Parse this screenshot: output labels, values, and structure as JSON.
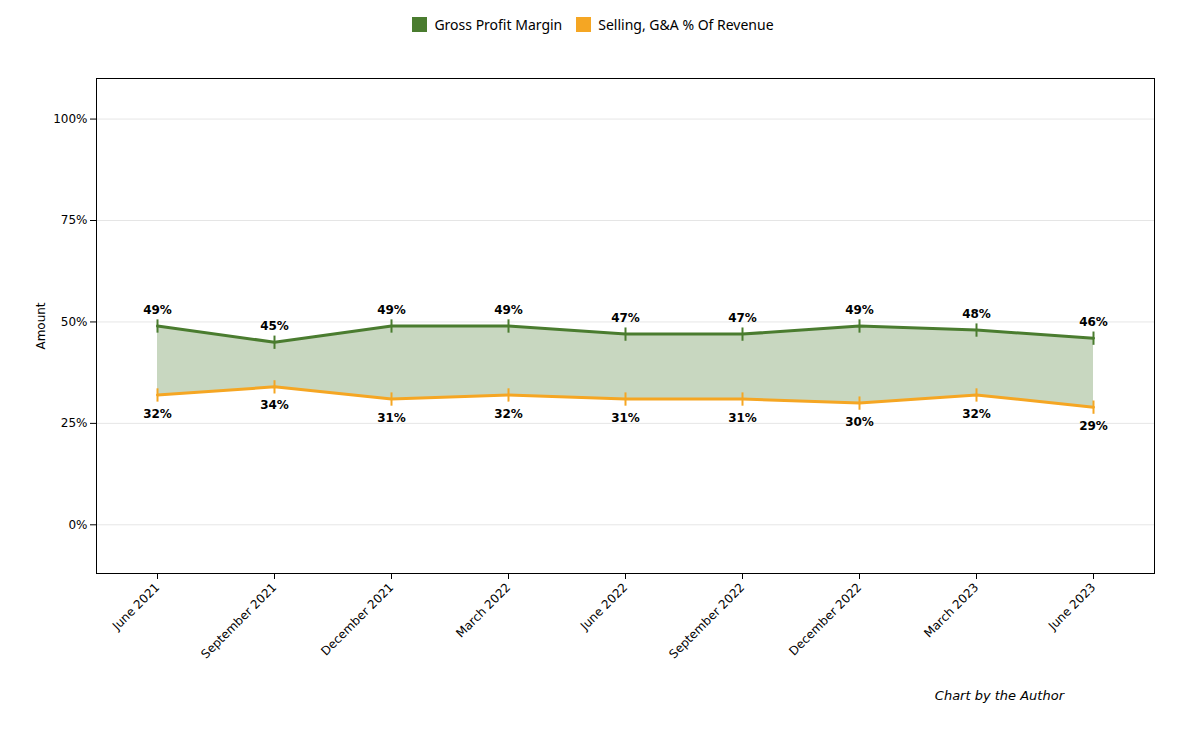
{
  "chart_data": {
    "type": "line",
    "categories": [
      "June 2021",
      "September 2021",
      "December 2021",
      "March 2022",
      "June 2022",
      "September 2022",
      "December 2022",
      "March 2023",
      "June 2023"
    ],
    "series": [
      {
        "name": "Gross Profit Margin",
        "color": "#4a7c2f",
        "marker": "vline",
        "values": [
          0.49,
          0.45,
          0.49,
          0.49,
          0.47,
          0.47,
          0.49,
          0.48,
          0.46
        ],
        "value_labels": [
          "49%",
          "45%",
          "49%",
          "49%",
          "47%",
          "47%",
          "49%",
          "48%",
          "46%"
        ]
      },
      {
        "name": "Selling, G&A % Of Revenue",
        "color": "#f5a623",
        "marker": "vline",
        "values": [
          0.32,
          0.34,
          0.31,
          0.32,
          0.31,
          0.31,
          0.3,
          0.32,
          0.29
        ],
        "value_labels": [
          "32%",
          "34%",
          "31%",
          "32%",
          "31%",
          "31%",
          "30%",
          "32%",
          "29%"
        ]
      }
    ],
    "ylabel": "Amount",
    "ylim": [
      -0.12,
      1.1
    ],
    "yticks": [
      {
        "value": 0,
        "label": "0%"
      },
      {
        "value": 0.25,
        "label": "25%"
      },
      {
        "value": 0.5,
        "label": "50%"
      },
      {
        "value": 0.75,
        "label": "75%"
      },
      {
        "value": 1,
        "label": "100%"
      }
    ],
    "grid": true,
    "legend": "top",
    "data_labels": true,
    "annotations": [
      "Chart by the Author"
    ]
  }
}
